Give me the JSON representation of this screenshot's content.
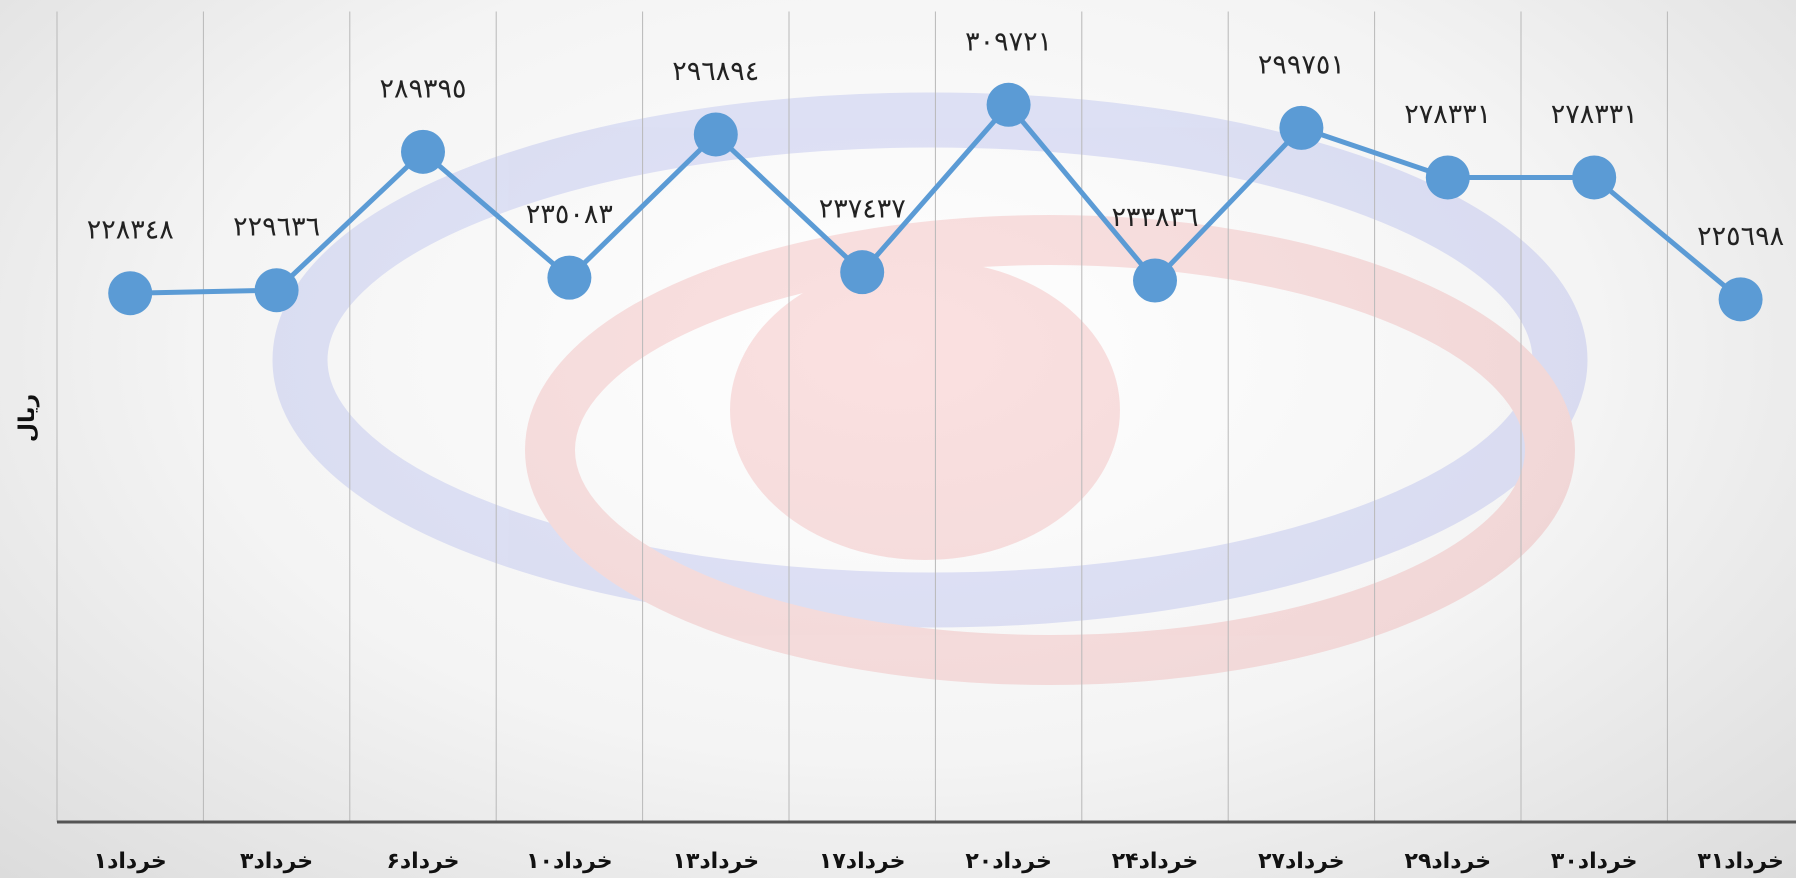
{
  "chart_data": {
    "type": "line",
    "y_label": "ریال",
    "categories": [
      "۱خرداد",
      "۳خرداد",
      "۶خرداد",
      "۱۰خرداد",
      "۱۳خرداد",
      "۱۷خرداد",
      "۲۰خرداد",
      "۲۴خرداد",
      "۲۷خرداد",
      "۲۹خرداد",
      "۳۰خرداد",
      "۳۱خرداد"
    ],
    "values": [
      228348,
      229636,
      289395,
      235083,
      296894,
      237437,
      309721,
      233836,
      299751,
      278331,
      278331,
      225698
    ],
    "value_labels": [
      "٢٢٨٣٤٨",
      "٢٢٩٦٣٦",
      "٢٨٩٣٩٥",
      "٢٣٥٠٨٣",
      "٢٩٦٨٩٤",
      "٢٣٧٤٣٧",
      "٣٠٩٧٢١",
      "٢٣٣٨٣٦",
      "٢٩٩٧٥١",
      "٢٧٨٣٣١",
      "٢٧٨٣٣١",
      "٢٢٥٦٩٨"
    ],
    "color": "#5b9bd5",
    "ylim": [
      0,
      350000
    ]
  }
}
